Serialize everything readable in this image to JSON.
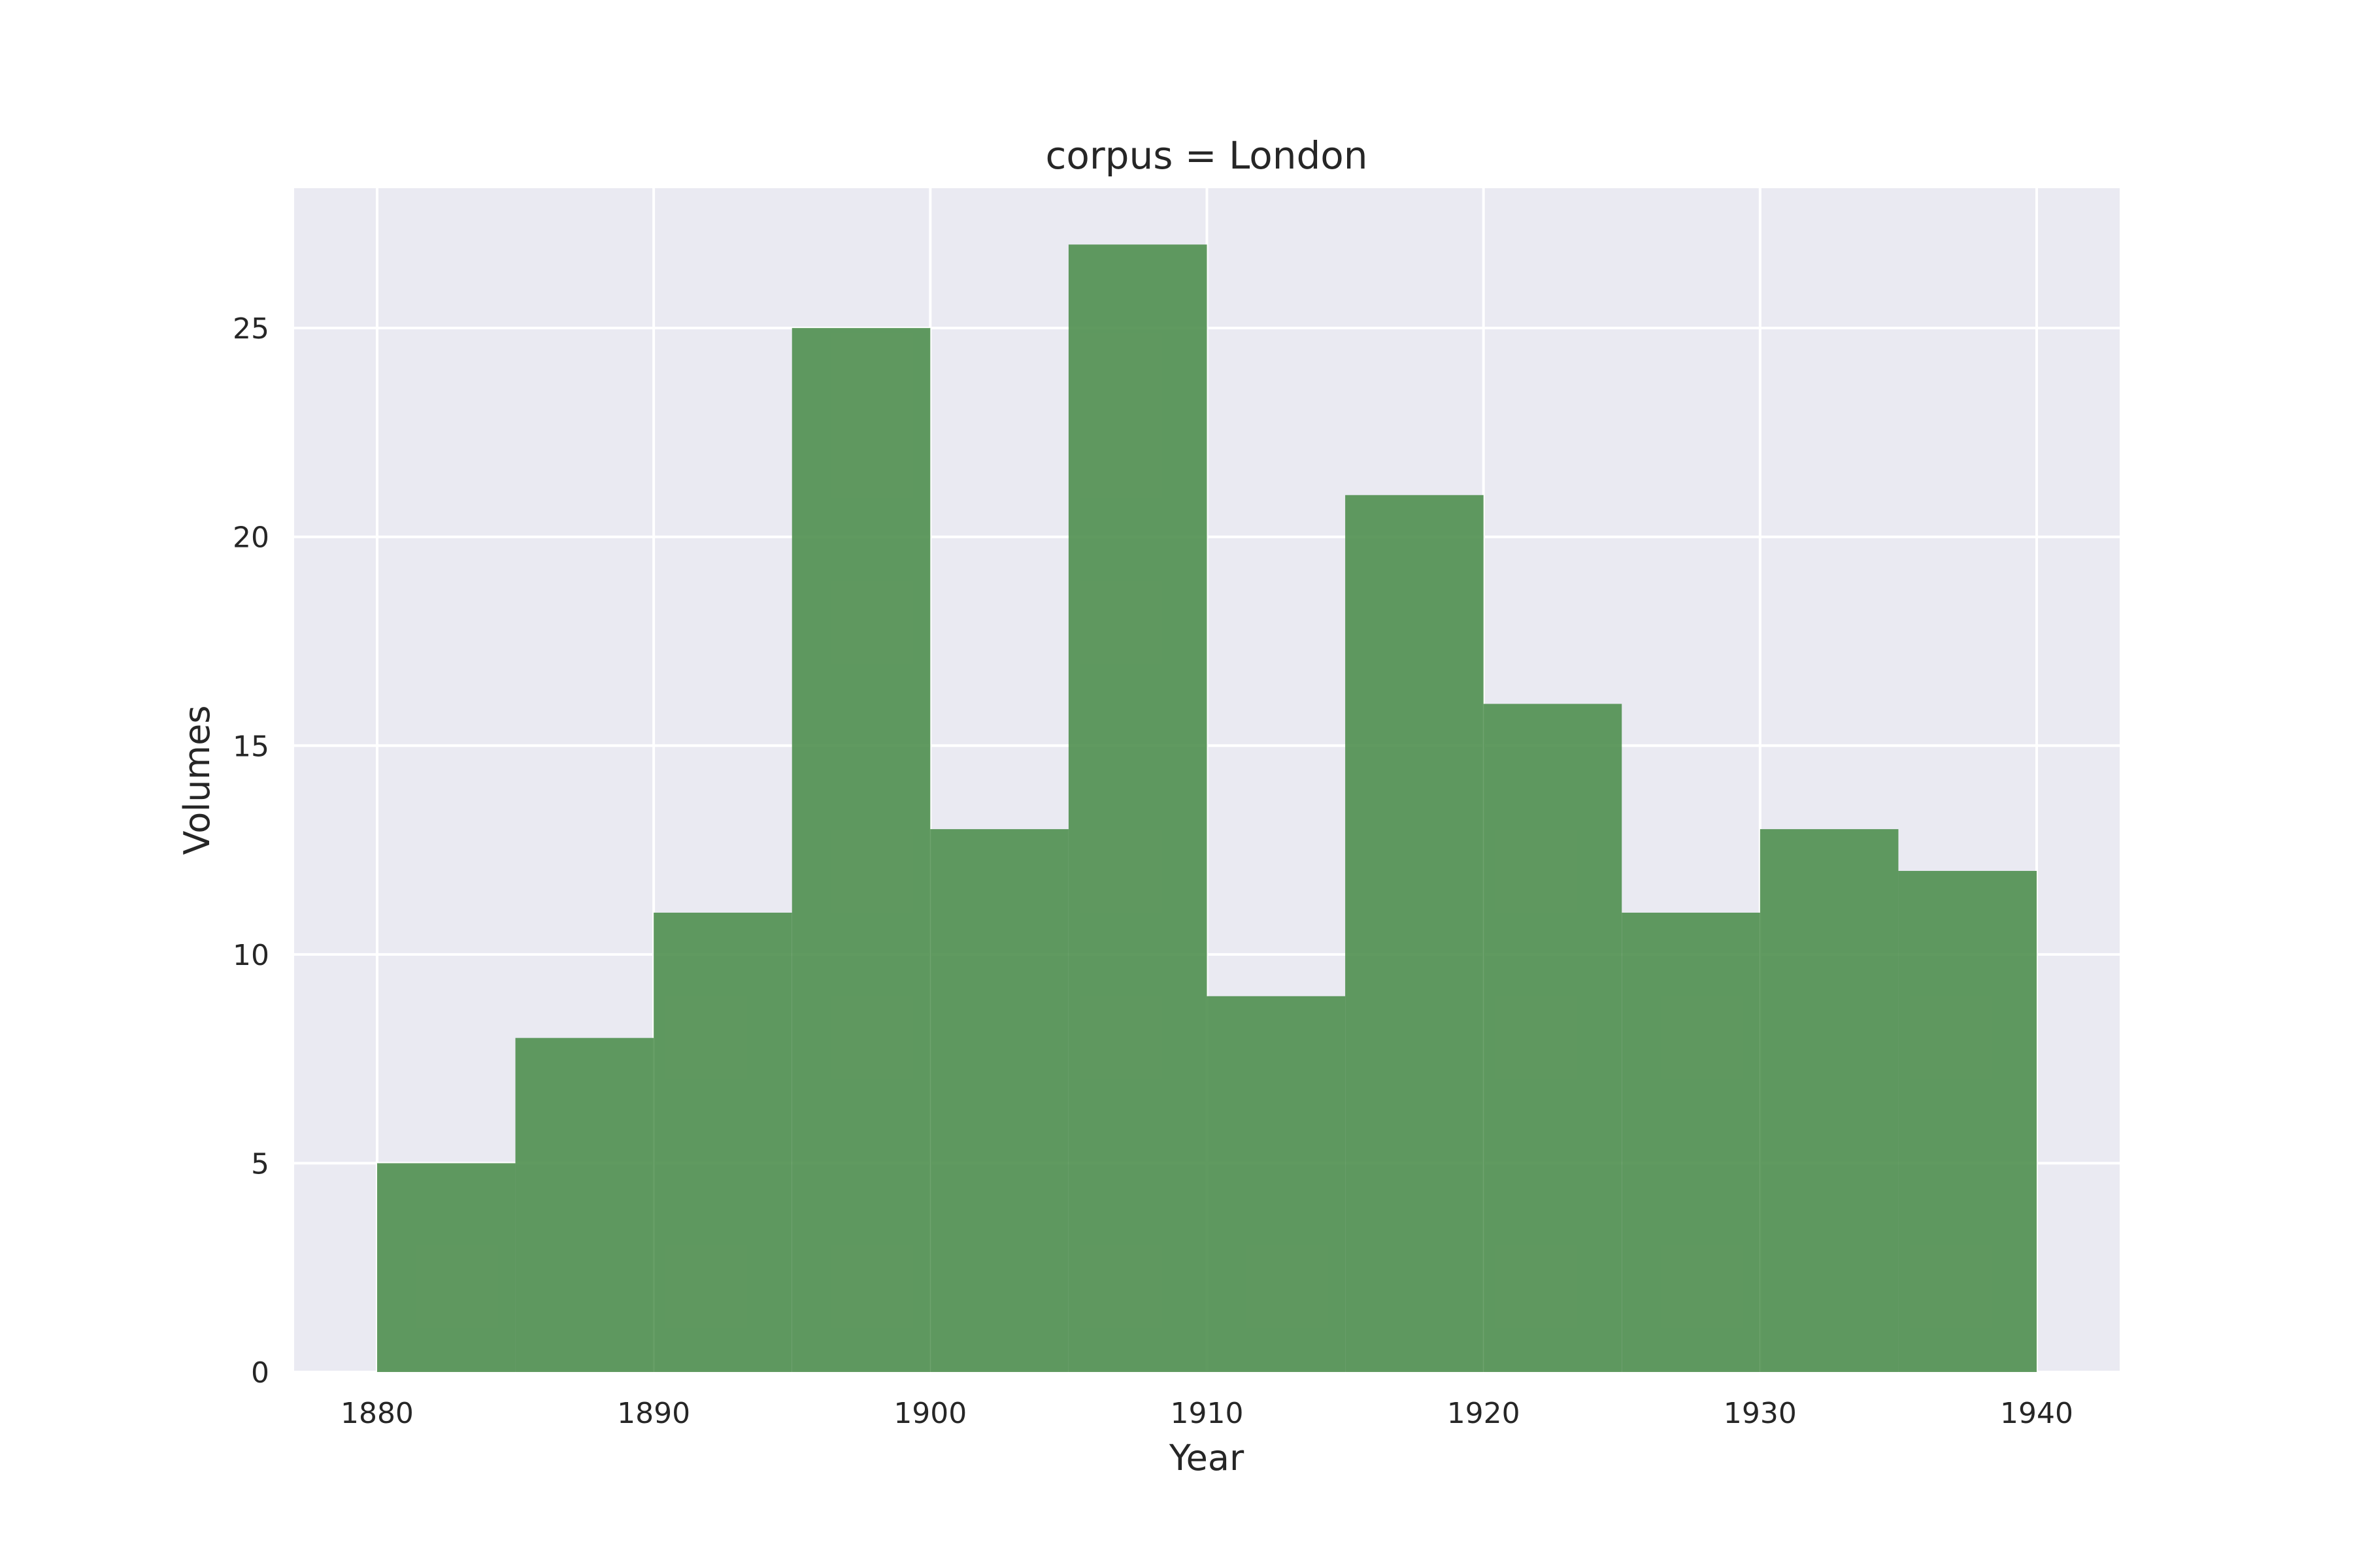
{
  "chart_data": {
    "type": "bar",
    "title": "corpus = London",
    "xlabel": "Year",
    "ylabel": "Volumes",
    "bins": [
      {
        "start": 1880,
        "end": 1885,
        "value": 5
      },
      {
        "start": 1885,
        "end": 1890,
        "value": 8
      },
      {
        "start": 1890,
        "end": 1895,
        "value": 11
      },
      {
        "start": 1895,
        "end": 1900,
        "value": 25
      },
      {
        "start": 1900,
        "end": 1905,
        "value": 13
      },
      {
        "start": 1905,
        "end": 1910,
        "value": 27
      },
      {
        "start": 1910,
        "end": 1915,
        "value": 9
      },
      {
        "start": 1915,
        "end": 1920,
        "value": 21
      },
      {
        "start": 1920,
        "end": 1925,
        "value": 16
      },
      {
        "start": 1925,
        "end": 1930,
        "value": 11
      },
      {
        "start": 1930,
        "end": 1935,
        "value": 13
      },
      {
        "start": 1935,
        "end": 1940,
        "value": 12
      }
    ],
    "xlim": [
      1877,
      1943
    ],
    "ylim": [
      0,
      28.35
    ],
    "xticks": [
      1880,
      1890,
      1900,
      1910,
      1920,
      1930,
      1940
    ],
    "yticks": [
      0,
      5,
      10,
      15,
      20,
      25
    ],
    "grid": true,
    "colors": {
      "bar": "#4f8f4f",
      "plot_background": "#eaeaf2",
      "grid": "#ffffff"
    }
  }
}
